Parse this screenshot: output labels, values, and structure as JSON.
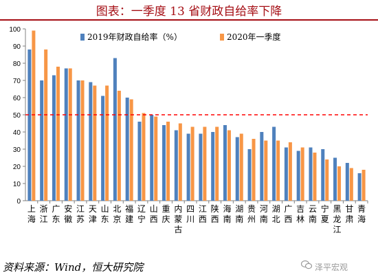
{
  "header": {
    "title": "图表：一季度 13 省财政自给率下降"
  },
  "footer": {
    "source": "资料来源：Wind，恒大研究院",
    "watermark": "泽平宏观"
  },
  "colors": {
    "series_2019": "#4f81bd",
    "series_2020": "#f79646",
    "reference_line": "#ff0000",
    "title": "#a50e14"
  },
  "chart_data": {
    "type": "bar",
    "categories": [
      "上海",
      "浙江",
      "广东",
      "安徽",
      "江苏",
      "天津",
      "山东",
      "北京",
      "福建",
      "辽宁",
      "山西",
      "重庆",
      "内蒙古",
      "四川",
      "江西",
      "陕西",
      "海南",
      "湖南",
      "贵州",
      "河南",
      "湖北",
      "广西",
      "吉林",
      "云南",
      "宁夏",
      "黑龙江",
      "甘肃",
      "青海"
    ],
    "series": [
      {
        "name": "2019年财政自给率（%）",
        "values": [
          88,
          70,
          73,
          77,
          70,
          69,
          61,
          83,
          60,
          46,
          50,
          44,
          41,
          39,
          39,
          40,
          44,
          37,
          30,
          40,
          43,
          31,
          29,
          31,
          30,
          25,
          22,
          16
        ]
      },
      {
        "name": "2020年一季度",
        "values": [
          99,
          88,
          78,
          77,
          70,
          67,
          67,
          64,
          59,
          51,
          49,
          46,
          45,
          43,
          43,
          43,
          41,
          39,
          36,
          35,
          35,
          34,
          31,
          28,
          24,
          20,
          19,
          18
        ]
      }
    ],
    "reference_line": 50,
    "ylim": [
      0,
      100
    ],
    "yticks": [
      0,
      10,
      20,
      30,
      40,
      50,
      60,
      70,
      80,
      90,
      100
    ],
    "legend_position": "top-center",
    "grid": false
  }
}
